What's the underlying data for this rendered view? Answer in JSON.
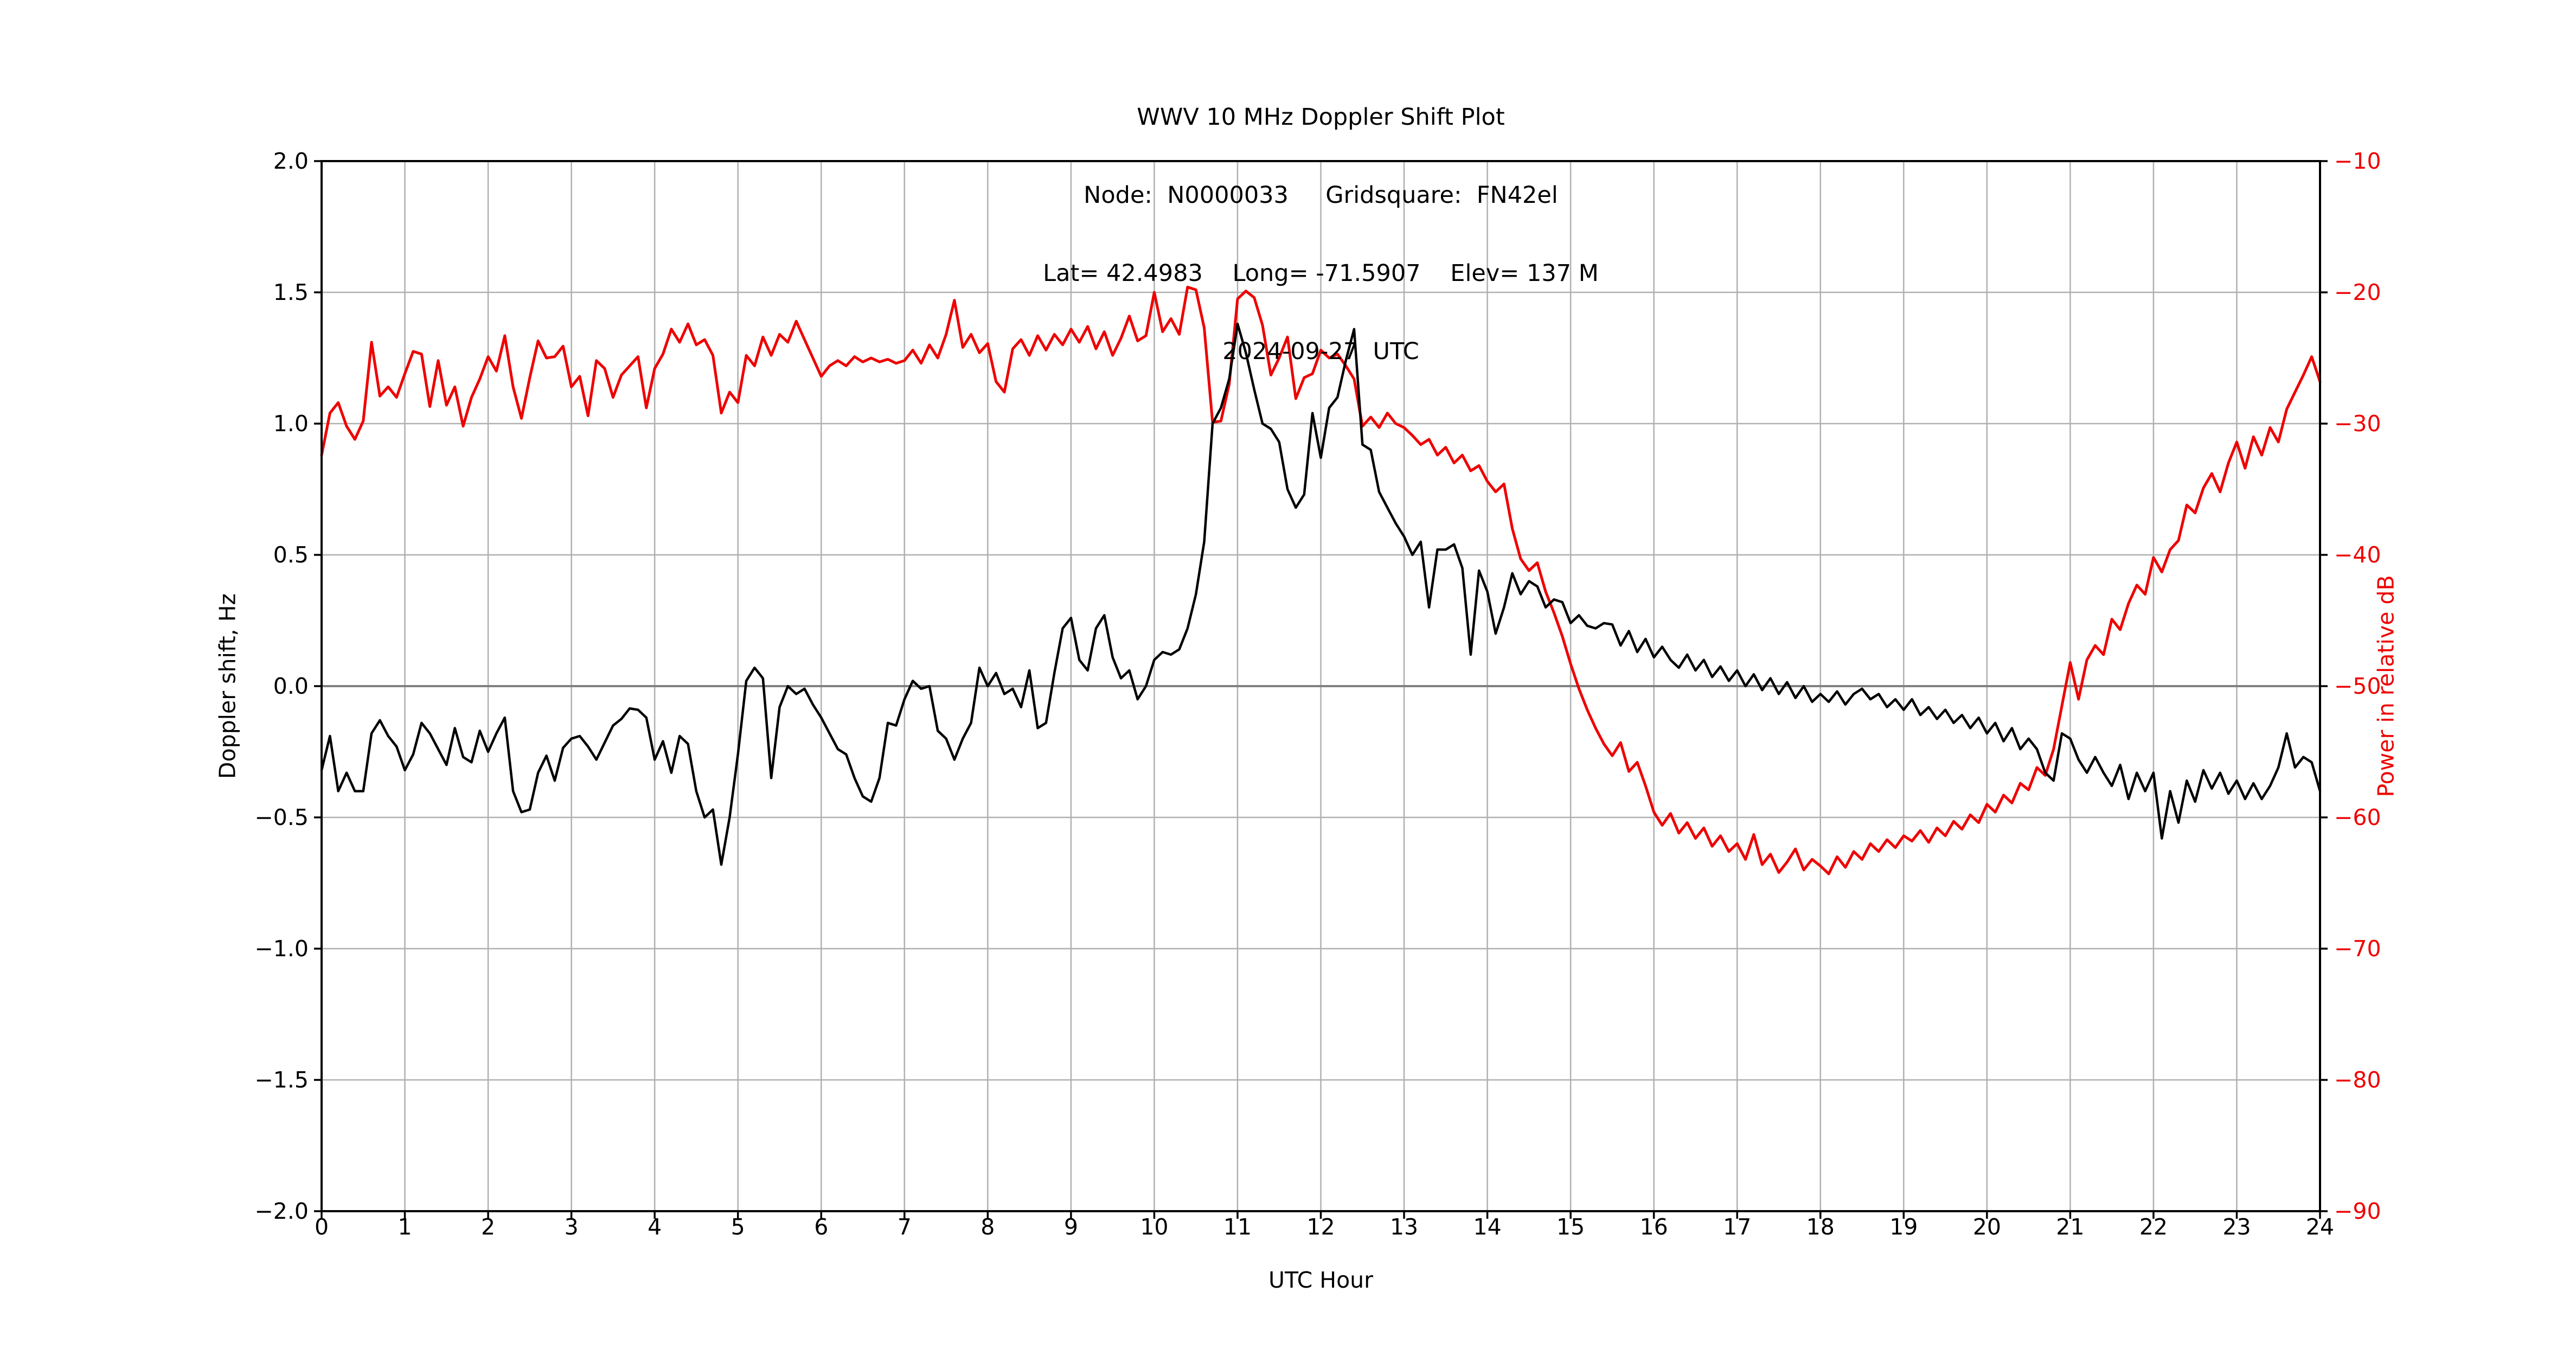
{
  "chart_data": {
    "type": "line",
    "title_lines": [
      "WWV 10 MHz Doppler Shift Plot",
      "Node:  N0000033     Gridsquare:  FN42el",
      "Lat= 42.4983    Long= -71.5907    Elev= 137 M",
      "2024-09-27  UTC"
    ],
    "xlabel": "UTC Hour",
    "ylabel_left": "Doppler shift, Hz",
    "ylabel_right": "Power in relative dB",
    "xlim": [
      0,
      24
    ],
    "ylim_left": [
      -2.0,
      2.0
    ],
    "ylim_right": [
      -90,
      -10
    ],
    "xtick_values": [
      0,
      1,
      2,
      3,
      4,
      5,
      6,
      7,
      8,
      9,
      10,
      11,
      12,
      13,
      14,
      15,
      16,
      17,
      18,
      19,
      20,
      21,
      22,
      23,
      24
    ],
    "xtick_labels": [
      "0",
      "1",
      "2",
      "3",
      "4",
      "5",
      "6",
      "7",
      "8",
      "9",
      "10",
      "11",
      "12",
      "13",
      "14",
      "15",
      "16",
      "17",
      "18",
      "19",
      "20",
      "21",
      "22",
      "23",
      "24"
    ],
    "ytick_values_left": [
      2.0,
      1.5,
      1.0,
      0.5,
      0.0,
      -0.5,
      -1.0,
      -1.5,
      -2.0
    ],
    "ytick_labels_left": [
      "2.0",
      "1.5",
      "1.0",
      "0.5",
      "0.0",
      "−0.5",
      "−1.0",
      "−1.5",
      "−2.0"
    ],
    "ytick_values_right": [
      -10,
      -20,
      -30,
      -40,
      -50,
      -60,
      -70,
      -80,
      -90
    ],
    "ytick_labels_right": [
      "−10",
      "−20",
      "−30",
      "−40",
      "−50",
      "−60",
      "−70",
      "−80",
      "−90"
    ],
    "grid": true,
    "legend": "none",
    "x_start": 0,
    "x_step": 0.1,
    "colors": {
      "doppler": "#000000",
      "power": "#ee0000",
      "grid": "#b0b0b0",
      "zero_line": "#808080",
      "spine": "#000000",
      "tick": "#000000"
    },
    "series": [
      {
        "name": "Doppler shift, Hz",
        "axis": "left",
        "color": "#000000",
        "linewidth": 4.5,
        "values": [
          -0.32,
          -0.19,
          -0.4,
          -0.33,
          -0.4,
          -0.4,
          -0.18,
          -0.13,
          -0.19,
          -0.23,
          -0.32,
          -0.26,
          -0.14,
          -0.18,
          -0.24,
          -0.3,
          -0.16,
          -0.27,
          -0.29,
          -0.17,
          -0.25,
          -0.18,
          -0.12,
          -0.4,
          -0.48,
          -0.47,
          -0.33,
          -0.265,
          -0.36,
          -0.235,
          -0.2,
          -0.19,
          -0.23,
          -0.28,
          -0.215,
          -0.15,
          -0.125,
          -0.085,
          -0.09,
          -0.12,
          -0.28,
          -0.21,
          -0.33,
          -0.19,
          -0.22,
          -0.4,
          -0.5,
          -0.47,
          -0.68,
          -0.5,
          -0.26,
          0.02,
          0.07,
          0.03,
          -0.35,
          -0.08,
          0.0,
          -0.03,
          -0.01,
          -0.07,
          -0.12,
          -0.18,
          -0.24,
          -0.26,
          -0.35,
          -0.42,
          -0.44,
          -0.35,
          -0.14,
          -0.15,
          -0.05,
          0.02,
          -0.01,
          0.0,
          -0.17,
          -0.2,
          -0.28,
          -0.2,
          -0.14,
          0.07,
          0.0,
          0.05,
          -0.03,
          -0.01,
          -0.08,
          0.06,
          -0.16,
          -0.14,
          0.05,
          0.22,
          0.26,
          0.1,
          0.06,
          0.22,
          0.27,
          0.11,
          0.03,
          0.06,
          -0.05,
          0.0,
          0.1,
          0.13,
          0.12,
          0.14,
          0.22,
          0.35,
          0.55,
          1.0,
          1.06,
          1.17,
          1.38,
          1.27,
          1.13,
          1.0,
          0.98,
          0.93,
          0.75,
          0.68,
          0.73,
          1.04,
          0.87,
          1.06,
          1.1,
          1.24,
          1.36,
          0.92,
          0.9,
          0.74,
          0.68,
          0.62,
          0.57,
          0.5,
          0.55,
          0.3,
          0.52,
          0.52,
          0.54,
          0.45,
          0.12,
          0.44,
          0.36,
          0.2,
          0.3,
          0.43,
          0.35,
          0.4,
          0.38,
          0.3,
          0.33,
          0.32,
          0.24,
          0.27,
          0.23,
          0.22,
          0.24,
          0.235,
          0.155,
          0.21,
          0.13,
          0.18,
          0.11,
          0.15,
          0.1,
          0.07,
          0.12,
          0.06,
          0.1,
          0.035,
          0.075,
          0.02,
          0.06,
          0.0,
          0.045,
          -0.015,
          0.03,
          -0.03,
          0.015,
          -0.045,
          0.0,
          -0.06,
          -0.03,
          -0.06,
          -0.02,
          -0.07,
          -0.03,
          -0.01,
          -0.05,
          -0.03,
          -0.08,
          -0.05,
          -0.09,
          -0.05,
          -0.11,
          -0.08,
          -0.125,
          -0.09,
          -0.14,
          -0.11,
          -0.16,
          -0.12,
          -0.18,
          -0.14,
          -0.21,
          -0.16,
          -0.24,
          -0.2,
          -0.24,
          -0.33,
          -0.36,
          -0.18,
          -0.2,
          -0.28,
          -0.33,
          -0.27,
          -0.33,
          -0.38,
          -0.3,
          -0.43,
          -0.33,
          -0.4,
          -0.33,
          -0.58,
          -0.4,
          -0.52,
          -0.36,
          -0.44,
          -0.32,
          -0.39,
          -0.33,
          -0.41,
          -0.36,
          -0.43,
          -0.37,
          -0.43,
          -0.38,
          -0.31,
          -0.18,
          -0.31,
          -0.27,
          -0.29,
          -0.4
        ]
      },
      {
        "name": "Power in relative dB",
        "axis": "right",
        "color": "#ee0000",
        "linewidth": 5,
        "values": [
          -32.4,
          -29.2,
          -28.4,
          -30.2,
          -31.2,
          -29.8,
          -23.8,
          -27.9,
          -27.2,
          -28.0,
          -26.2,
          -24.5,
          -24.7,
          -28.7,
          -25.2,
          -28.6,
          -27.2,
          -30.2,
          -28.0,
          -26.6,
          -24.9,
          -26.0,
          -23.3,
          -27.2,
          -29.6,
          -26.5,
          -23.7,
          -25.0,
          -24.9,
          -24.1,
          -27.2,
          -26.4,
          -29.4,
          -25.2,
          -25.8,
          -28.0,
          -26.3,
          -25.6,
          -24.9,
          -28.8,
          -25.8,
          -24.7,
          -22.8,
          -23.8,
          -22.4,
          -24.0,
          -23.6,
          -24.8,
          -29.2,
          -27.6,
          -28.4,
          -24.8,
          -25.6,
          -23.4,
          -24.8,
          -23.2,
          -23.8,
          -22.2,
          -23.6,
          -25.0,
          -26.4,
          -25.6,
          -25.2,
          -25.6,
          -24.9,
          -25.3,
          -25.0,
          -25.3,
          -25.1,
          -25.4,
          -25.2,
          -24.4,
          -25.4,
          -24.0,
          -25.0,
          -23.2,
          -20.6,
          -24.2,
          -23.2,
          -24.6,
          -23.9,
          -26.8,
          -27.6,
          -24.3,
          -23.6,
          -24.8,
          -23.3,
          -24.4,
          -23.2,
          -24.0,
          -22.8,
          -23.8,
          -22.6,
          -24.3,
          -23.0,
          -24.8,
          -23.5,
          -21.8,
          -23.7,
          -23.3,
          -20.0,
          -23.0,
          -22.0,
          -23.2,
          -19.6,
          -19.8,
          -22.7,
          -29.9,
          -29.8,
          -27.0,
          -20.5,
          -19.9,
          -20.4,
          -22.5,
          -26.3,
          -25.0,
          -23.4,
          -28.1,
          -26.5,
          -26.2,
          -24.4,
          -25.0,
          -24.7,
          -25.6,
          -26.6,
          -30.2,
          -29.5,
          -30.3,
          -29.2,
          -30.0,
          -30.3,
          -30.9,
          -31.6,
          -31.2,
          -32.4,
          -31.8,
          -33.0,
          -32.4,
          -33.6,
          -33.2,
          -34.4,
          -35.2,
          -34.6,
          -38.0,
          -40.3,
          -41.2,
          -40.6,
          -42.8,
          -44.4,
          -46.2,
          -48.3,
          -50.2,
          -51.8,
          -53.2,
          -54.4,
          -55.3,
          -54.3,
          -56.5,
          -55.8,
          -57.6,
          -59.6,
          -60.6,
          -59.7,
          -61.2,
          -60.4,
          -61.6,
          -60.8,
          -62.2,
          -61.4,
          -62.6,
          -62.0,
          -63.2,
          -61.3,
          -63.6,
          -62.8,
          -64.2,
          -63.4,
          -62.4,
          -64.0,
          -63.2,
          -63.7,
          -64.3,
          -63.0,
          -63.8,
          -62.6,
          -63.2,
          -62.0,
          -62.6,
          -61.7,
          -62.3,
          -61.4,
          -61.8,
          -61.0,
          -61.9,
          -60.8,
          -61.4,
          -60.3,
          -60.9,
          -59.8,
          -60.4,
          -59.0,
          -59.6,
          -58.3,
          -58.9,
          -57.4,
          -57.9,
          -56.2,
          -56.8,
          -54.8,
          -51.5,
          -48.2,
          -51.0,
          -48.0,
          -46.9,
          -47.6,
          -44.9,
          -45.7,
          -43.7,
          -42.3,
          -43.0,
          -40.2,
          -41.3,
          -39.6,
          -38.9,
          -36.2,
          -36.8,
          -34.9,
          -33.8,
          -35.2,
          -33.0,
          -31.4,
          -33.4,
          -31.0,
          -32.4,
          -30.3,
          -31.4,
          -28.9,
          -27.6,
          -26.3,
          -24.9,
          -26.8
        ]
      }
    ]
  }
}
